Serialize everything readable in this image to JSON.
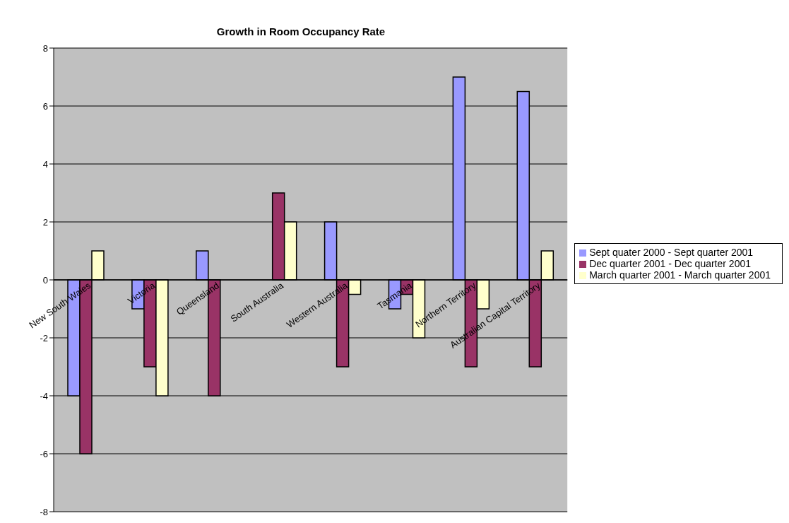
{
  "chart_data": {
    "type": "bar",
    "title": "Growth in Room Occupancy Rate",
    "categories": [
      "New South Wales",
      "Victoria",
      "Queensland",
      "South Australia",
      "Western Australia",
      "Tasmania",
      "Northern Territory",
      "Australian Capital Territory"
    ],
    "series": [
      {
        "name": "Sept quater 2000 - Sept quarter 2001",
        "color": "#9999ff",
        "values": [
          -4,
          -1,
          1,
          null,
          2,
          -1,
          7,
          6.5
        ]
      },
      {
        "name": "Dec quarter 2001 - Dec quarter 2001",
        "color": "#993366",
        "values": [
          -6,
          -3,
          -4,
          3,
          -3,
          -0.5,
          -3,
          -3
        ]
      },
      {
        "name": "March quarter 2001 - March quarter 2001",
        "color": "#ffffcc",
        "values": [
          1,
          -4,
          null,
          2,
          -0.5,
          -2,
          -1,
          1
        ]
      }
    ],
    "ylim": [
      -8,
      8
    ],
    "yticks": [
      -8,
      -6,
      -4,
      -2,
      0,
      2,
      4,
      6,
      8
    ],
    "grid": "y",
    "legend": "right"
  }
}
